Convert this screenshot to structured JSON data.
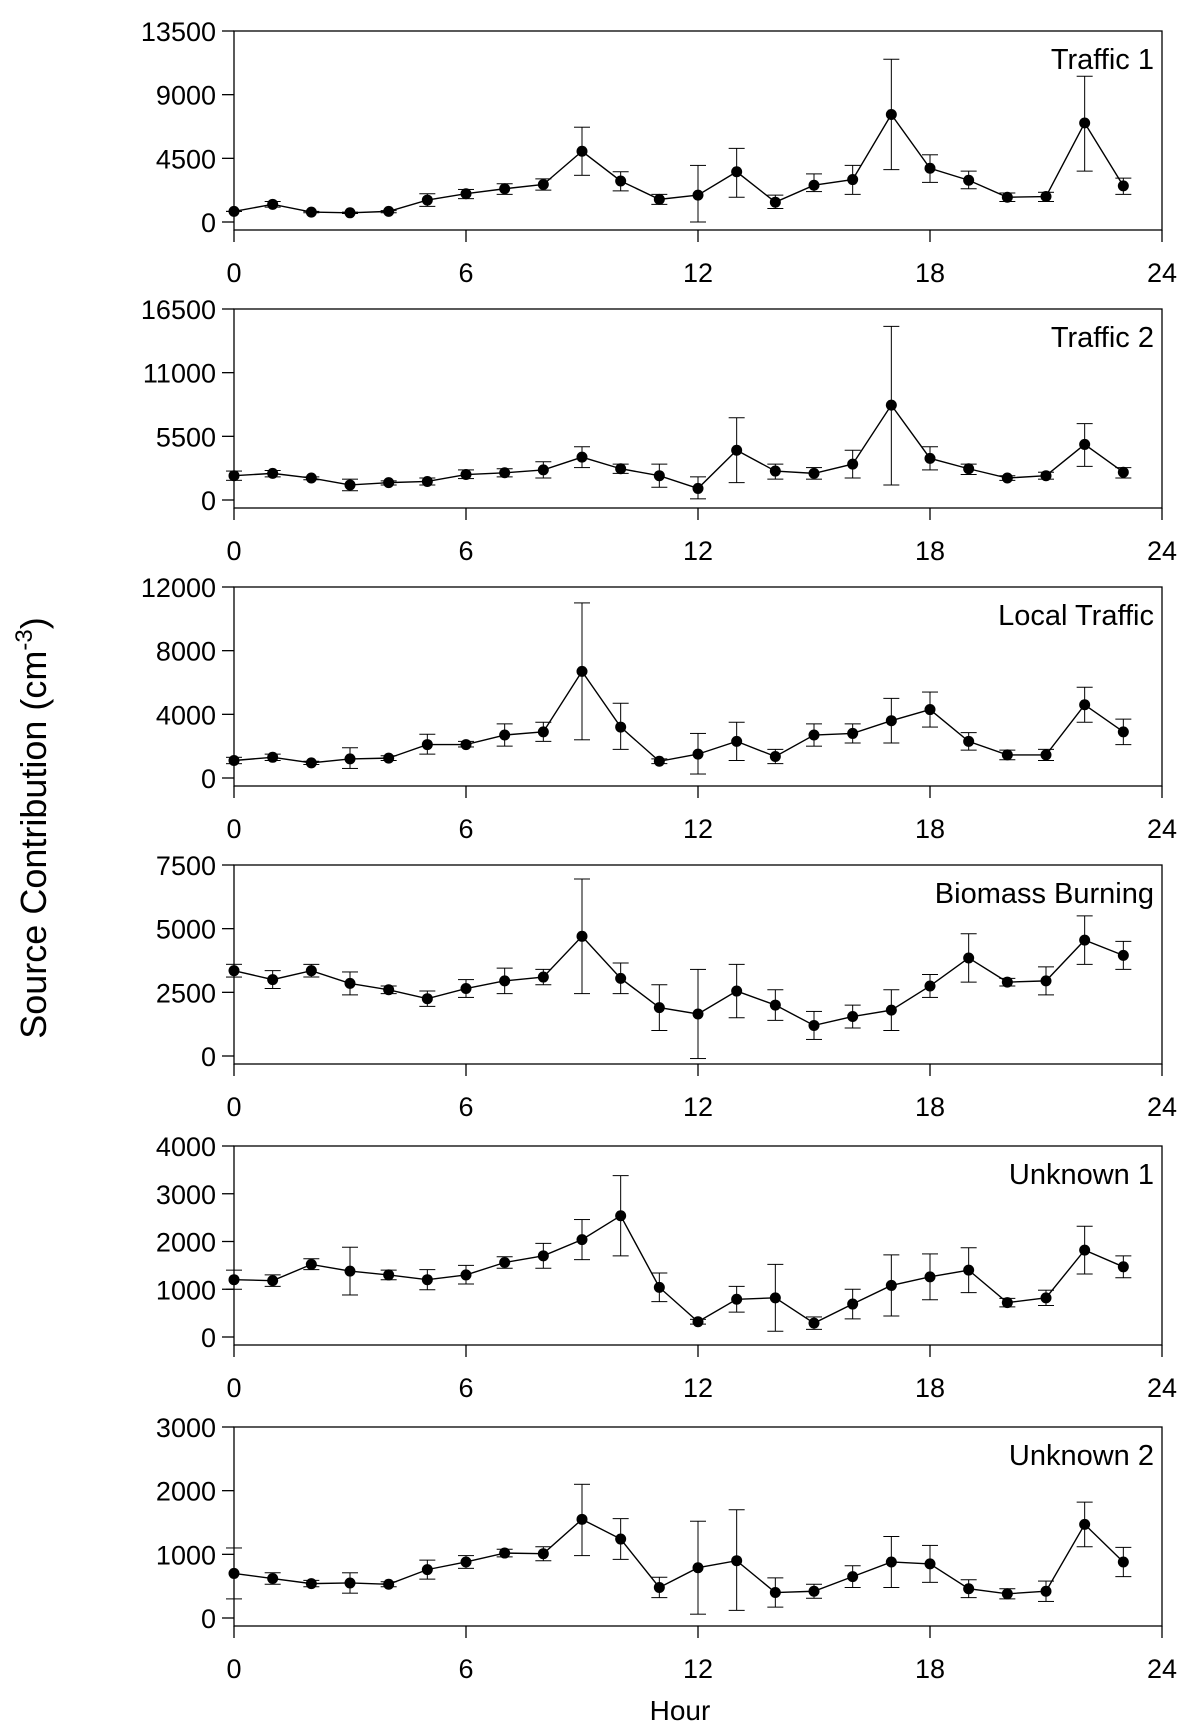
{
  "ylabel": "Source Contribution (cm",
  "ylabel_sup": "-3",
  "ylabel_close": ")",
  "xlabel": "Hour",
  "chart_data": [
    {
      "type": "line",
      "title": "Traffic 1",
      "x": [
        0,
        1,
        2,
        3,
        4,
        5,
        6,
        7,
        8,
        9,
        10,
        11,
        12,
        13,
        14,
        15,
        16,
        17,
        18,
        19,
        20,
        21,
        22,
        23
      ],
      "values": [
        750,
        1250,
        700,
        650,
        750,
        1550,
        2000,
        2350,
        2650,
        5000,
        2900,
        1600,
        1900,
        3550,
        1400,
        2600,
        3000,
        7600,
        3800,
        2950,
        1750,
        1800,
        7000,
        2550
      ],
      "err_lower": [
        750,
        1050,
        650,
        600,
        650,
        1100,
        1650,
        1950,
        2250,
        3300,
        2200,
        1250,
        0,
        1750,
        950,
        2150,
        1950,
        3700,
        2800,
        2350,
        1450,
        1450,
        3600,
        1950
      ],
      "err_upper": [
        750,
        1450,
        750,
        700,
        800,
        2000,
        2300,
        2700,
        3050,
        6700,
        3550,
        1950,
        4000,
        5200,
        1900,
        3400,
        4000,
        11500,
        4750,
        3600,
        2050,
        2100,
        10300,
        3100
      ],
      "ylim": [
        0,
        13500
      ],
      "yticks": [
        "0",
        "4500",
        "9000",
        "13500"
      ],
      "xlim": [
        0,
        24
      ],
      "xticks": [
        "0",
        "6",
        "12",
        "18",
        "24"
      ]
    },
    {
      "type": "line",
      "title": "Traffic 2",
      "x": [
        0,
        1,
        2,
        3,
        4,
        5,
        6,
        7,
        8,
        9,
        10,
        11,
        12,
        13,
        14,
        15,
        16,
        17,
        18,
        19,
        20,
        21,
        22,
        23
      ],
      "values": [
        2100,
        2300,
        1900,
        1300,
        1500,
        1600,
        2200,
        2350,
        2600,
        3700,
        2700,
        2100,
        1000,
        4300,
        2500,
        2300,
        3100,
        8200,
        3600,
        2700,
        1900,
        2100,
        4800,
        2400
      ],
      "err_lower": [
        1700,
        2000,
        1750,
        800,
        1300,
        1300,
        1850,
        2000,
        1900,
        2800,
        2300,
        1100,
        100,
        1500,
        1800,
        1800,
        1900,
        1300,
        2600,
        2200,
        1700,
        1800,
        2900,
        1900
      ],
      "err_upper": [
        2500,
        2550,
        2000,
        1800,
        1650,
        1900,
        2600,
        2700,
        3300,
        4600,
        3100,
        3100,
        2000,
        7100,
        3100,
        2800,
        4300,
        15000,
        4600,
        3100,
        2100,
        2400,
        6600,
        2800
      ],
      "ylim": [
        0,
        16500
      ],
      "yticks": [
        "0",
        "5500",
        "11000",
        "16500"
      ],
      "xlim": [
        0,
        24
      ],
      "xticks": [
        "0",
        "6",
        "12",
        "18",
        "24"
      ]
    },
    {
      "type": "line",
      "title": "Local Traffic",
      "x": [
        0,
        1,
        2,
        3,
        4,
        5,
        6,
        7,
        8,
        9,
        10,
        11,
        12,
        13,
        14,
        15,
        16,
        17,
        18,
        19,
        20,
        21,
        22,
        23
      ],
      "values": [
        1100,
        1300,
        950,
        1200,
        1250,
        2100,
        2100,
        2700,
        2900,
        6700,
        3200,
        1050,
        1500,
        2300,
        1350,
        2700,
        2800,
        3600,
        4300,
        2300,
        1450,
        1450,
        4600,
        2900
      ],
      "err_lower": [
        900,
        1100,
        850,
        600,
        1100,
        1500,
        1950,
        2000,
        2300,
        2400,
        1800,
        900,
        250,
        1100,
        900,
        2000,
        2200,
        2200,
        3200,
        1750,
        1150,
        1100,
        3500,
        2100
      ],
      "err_upper": [
        1300,
        1500,
        1050,
        1900,
        1400,
        2750,
        2300,
        3400,
        3500,
        11000,
        4700,
        1200,
        2800,
        3500,
        1800,
        3400,
        3400,
        5000,
        5400,
        2850,
        1750,
        1800,
        5700,
        3700
      ],
      "ylim": [
        0,
        12000
      ],
      "yticks": [
        "0",
        "4000",
        "8000",
        "12000"
      ],
      "xlim": [
        0,
        24
      ],
      "xticks": [
        "0",
        "6",
        "12",
        "18",
        "24"
      ]
    },
    {
      "type": "line",
      "title": "Biomass Burning",
      "x": [
        0,
        1,
        2,
        3,
        4,
        5,
        6,
        7,
        8,
        9,
        10,
        11,
        12,
        13,
        14,
        15,
        16,
        17,
        18,
        19,
        20,
        21,
        22,
        23
      ],
      "values": [
        3350,
        3000,
        3350,
        2850,
        2600,
        2250,
        2650,
        2950,
        3100,
        4700,
        3050,
        1900,
        1650,
        2550,
        2000,
        1200,
        1550,
        1800,
        2750,
        3850,
        2900,
        2950,
        4550,
        3950
      ],
      "err_lower": [
        3100,
        2650,
        3100,
        2400,
        2450,
        1950,
        2300,
        2450,
        2800,
        2450,
        2450,
        1000,
        -100,
        1500,
        1400,
        650,
        1100,
        1000,
        2300,
        2900,
        2750,
        2400,
        3600,
        3400
      ],
      "err_upper": [
        3600,
        3350,
        3600,
        3300,
        2750,
        2550,
        3000,
        3450,
        3400,
        6950,
        3650,
        2800,
        3400,
        3600,
        2600,
        1750,
        2000,
        2600,
        3200,
        4800,
        3050,
        3500,
        5500,
        4500
      ],
      "ylim": [
        0,
        7500
      ],
      "yticks": [
        "0",
        "2500",
        "5000",
        "7500"
      ],
      "xlim": [
        0,
        24
      ],
      "xticks": [
        "0",
        "6",
        "12",
        "18",
        "24"
      ]
    },
    {
      "type": "line",
      "title": "Unknown 1",
      "x": [
        0,
        1,
        2,
        3,
        4,
        5,
        6,
        7,
        8,
        9,
        10,
        11,
        12,
        13,
        14,
        15,
        16,
        17,
        18,
        19,
        20,
        21,
        22,
        23
      ],
      "values": [
        1200,
        1180,
        1520,
        1380,
        1300,
        1200,
        1300,
        1560,
        1700,
        2040,
        2540,
        1040,
        320,
        790,
        820,
        290,
        690,
        1080,
        1260,
        1400,
        720,
        820,
        1820,
        1470
      ],
      "err_lower": [
        1000,
        1060,
        1410,
        880,
        1200,
        990,
        1110,
        1440,
        1440,
        1620,
        1700,
        740,
        270,
        520,
        120,
        160,
        380,
        440,
        780,
        930,
        630,
        660,
        1320,
        1240
      ],
      "err_upper": [
        1400,
        1300,
        1640,
        1880,
        1400,
        1410,
        1500,
        1680,
        1960,
        2460,
        3380,
        1340,
        370,
        1060,
        1520,
        420,
        1000,
        1720,
        1740,
        1870,
        810,
        980,
        2320,
        1700
      ],
      "ylim": [
        0,
        4000
      ],
      "yticks": [
        "0",
        "1000",
        "2000",
        "3000",
        "4000"
      ],
      "xlim": [
        0,
        24
      ],
      "xticks": [
        "0",
        "6",
        "12",
        "18",
        "24"
      ]
    },
    {
      "type": "line",
      "title": "Unknown 2",
      "x": [
        0,
        1,
        2,
        3,
        4,
        5,
        6,
        7,
        8,
        9,
        10,
        11,
        12,
        13,
        14,
        15,
        16,
        17,
        18,
        19,
        20,
        21,
        22,
        23
      ],
      "values": [
        700,
        620,
        540,
        550,
        530,
        760,
        880,
        1020,
        1010,
        1550,
        1240,
        480,
        790,
        900,
        400,
        420,
        650,
        880,
        850,
        460,
        380,
        420,
        1470,
        880
      ],
      "err_lower": [
        300,
        530,
        490,
        390,
        490,
        610,
        780,
        960,
        900,
        980,
        920,
        320,
        60,
        120,
        170,
        310,
        480,
        480,
        560,
        320,
        300,
        260,
        1120,
        650
      ],
      "err_upper": [
        1100,
        710,
        590,
        710,
        570,
        910,
        980,
        1080,
        1120,
        2100,
        1560,
        640,
        1520,
        1700,
        630,
        530,
        820,
        1280,
        1140,
        600,
        460,
        580,
        1820,
        1110
      ],
      "ylim": [
        0,
        3000
      ],
      "yticks": [
        "0",
        "1000",
        "2000",
        "3000"
      ],
      "xlim": [
        0,
        24
      ],
      "xticks": [
        "0",
        "6",
        "12",
        "18",
        "24"
      ]
    }
  ]
}
